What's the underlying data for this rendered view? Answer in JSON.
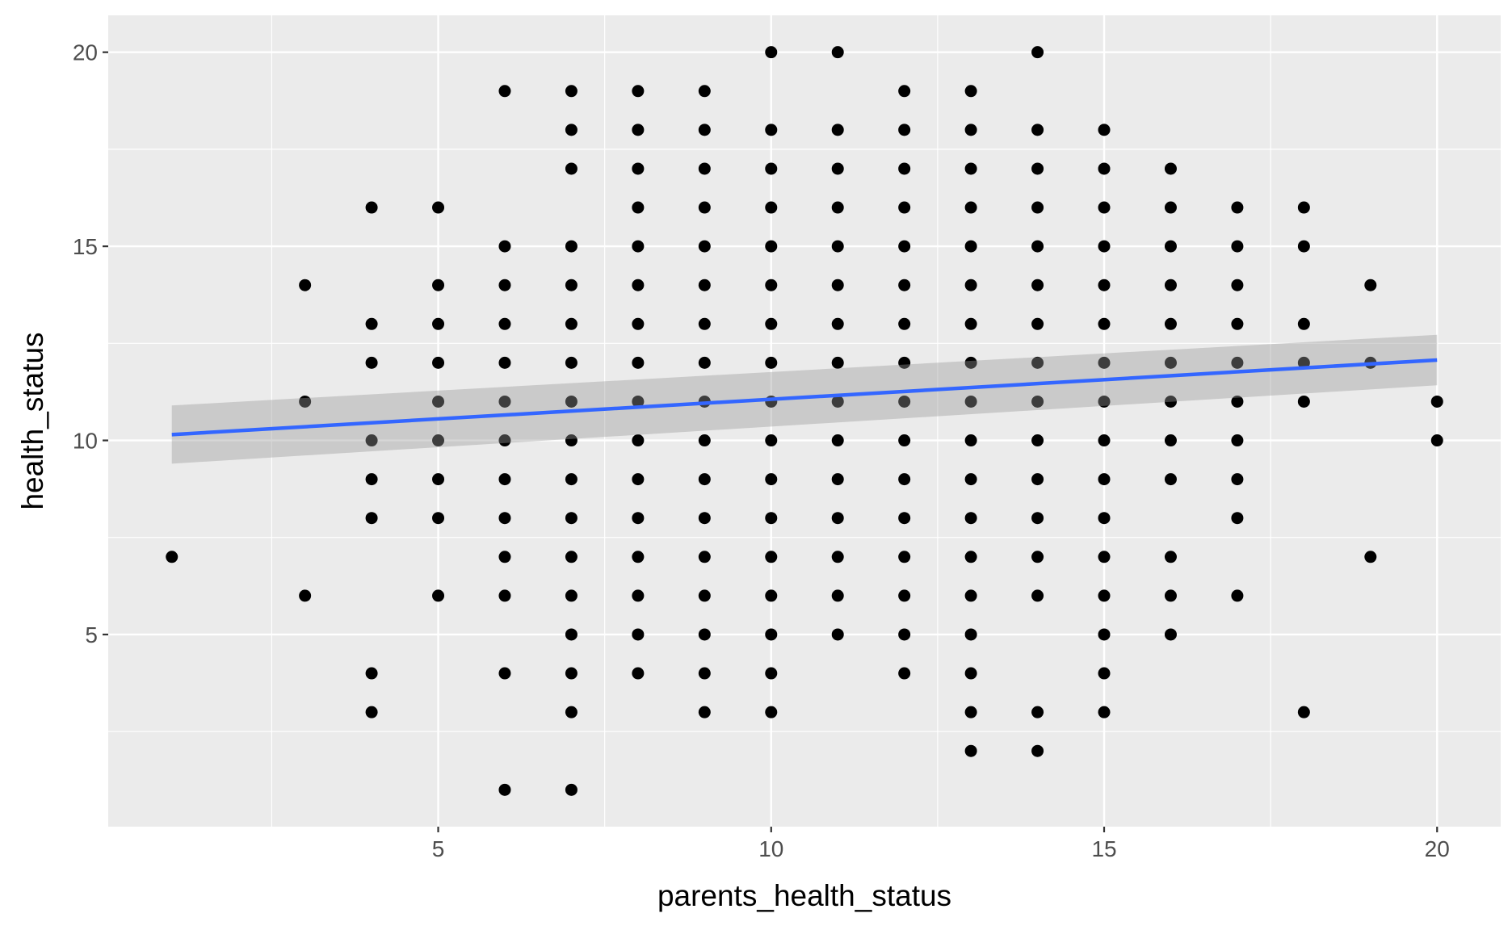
{
  "chart_data": {
    "type": "scatter",
    "title": "",
    "xlabel": "parents_health_status",
    "ylabel": "health_status",
    "xlim": [
      0.045,
      20.955
    ],
    "ylim": [
      0.05,
      20.95
    ],
    "x_ticks": [
      5,
      10,
      15,
      20
    ],
    "x_tick_labels": [
      "5",
      "10",
      "15",
      "20"
    ],
    "y_ticks": [
      5,
      10,
      15,
      20
    ],
    "y_tick_labels": [
      "5",
      "10",
      "15",
      "20"
    ],
    "grid": true,
    "legend": "none",
    "colors": {
      "panel_background": "#ebebeb",
      "grid": "#ffffff",
      "points": "#000000",
      "trend_line": "#3366ff",
      "confidence_band": "#999999"
    },
    "points": [
      [
        1,
        7
      ],
      [
        3,
        14
      ],
      [
        3,
        11
      ],
      [
        3,
        6
      ],
      [
        4,
        16
      ],
      [
        4,
        13
      ],
      [
        4,
        12
      ],
      [
        4,
        10
      ],
      [
        4,
        9
      ],
      [
        4,
        8
      ],
      [
        4,
        4
      ],
      [
        4,
        3
      ],
      [
        5,
        16
      ],
      [
        5,
        14
      ],
      [
        5,
        13
      ],
      [
        5,
        12
      ],
      [
        5,
        11
      ],
      [
        5,
        10
      ],
      [
        5,
        9
      ],
      [
        5,
        8
      ],
      [
        5,
        6
      ],
      [
        6,
        19
      ],
      [
        6,
        15
      ],
      [
        6,
        14
      ],
      [
        6,
        13
      ],
      [
        6,
        12
      ],
      [
        6,
        11
      ],
      [
        6,
        10
      ],
      [
        6,
        9
      ],
      [
        6,
        8
      ],
      [
        6,
        7
      ],
      [
        6,
        6
      ],
      [
        6,
        4
      ],
      [
        6,
        1
      ],
      [
        7,
        19
      ],
      [
        7,
        18
      ],
      [
        7,
        17
      ],
      [
        7,
        15
      ],
      [
        7,
        14
      ],
      [
        7,
        13
      ],
      [
        7,
        12
      ],
      [
        7,
        11
      ],
      [
        7,
        10
      ],
      [
        7,
        9
      ],
      [
        7,
        8
      ],
      [
        7,
        7
      ],
      [
        7,
        6
      ],
      [
        7,
        5
      ],
      [
        7,
        4
      ],
      [
        7,
        3
      ],
      [
        7,
        1
      ],
      [
        8,
        19
      ],
      [
        8,
        18
      ],
      [
        8,
        17
      ],
      [
        8,
        16
      ],
      [
        8,
        15
      ],
      [
        8,
        14
      ],
      [
        8,
        13
      ],
      [
        8,
        12
      ],
      [
        8,
        11
      ],
      [
        8,
        10
      ],
      [
        8,
        9
      ],
      [
        8,
        8
      ],
      [
        8,
        7
      ],
      [
        8,
        6
      ],
      [
        8,
        5
      ],
      [
        8,
        4
      ],
      [
        9,
        19
      ],
      [
        9,
        18
      ],
      [
        9,
        17
      ],
      [
        9,
        16
      ],
      [
        9,
        15
      ],
      [
        9,
        14
      ],
      [
        9,
        13
      ],
      [
        9,
        12
      ],
      [
        9,
        11
      ],
      [
        9,
        10
      ],
      [
        9,
        9
      ],
      [
        9,
        8
      ],
      [
        9,
        7
      ],
      [
        9,
        6
      ],
      [
        9,
        5
      ],
      [
        9,
        4
      ],
      [
        9,
        3
      ],
      [
        10,
        20
      ],
      [
        10,
        18
      ],
      [
        10,
        17
      ],
      [
        10,
        16
      ],
      [
        10,
        15
      ],
      [
        10,
        14
      ],
      [
        10,
        13
      ],
      [
        10,
        12
      ],
      [
        10,
        11
      ],
      [
        10,
        10
      ],
      [
        10,
        9
      ],
      [
        10,
        8
      ],
      [
        10,
        7
      ],
      [
        10,
        6
      ],
      [
        10,
        5
      ],
      [
        10,
        4
      ],
      [
        10,
        3
      ],
      [
        11,
        20
      ],
      [
        11,
        18
      ],
      [
        11,
        17
      ],
      [
        11,
        16
      ],
      [
        11,
        15
      ],
      [
        11,
        14
      ],
      [
        11,
        13
      ],
      [
        11,
        12
      ],
      [
        11,
        11
      ],
      [
        11,
        10
      ],
      [
        11,
        9
      ],
      [
        11,
        8
      ],
      [
        11,
        7
      ],
      [
        11,
        6
      ],
      [
        11,
        5
      ],
      [
        12,
        19
      ],
      [
        12,
        18
      ],
      [
        12,
        17
      ],
      [
        12,
        16
      ],
      [
        12,
        15
      ],
      [
        12,
        14
      ],
      [
        12,
        13
      ],
      [
        12,
        12
      ],
      [
        12,
        11
      ],
      [
        12,
        10
      ],
      [
        12,
        9
      ],
      [
        12,
        8
      ],
      [
        12,
        7
      ],
      [
        12,
        6
      ],
      [
        12,
        5
      ],
      [
        12,
        4
      ],
      [
        13,
        19
      ],
      [
        13,
        18
      ],
      [
        13,
        17
      ],
      [
        13,
        16
      ],
      [
        13,
        15
      ],
      [
        13,
        14
      ],
      [
        13,
        13
      ],
      [
        13,
        12
      ],
      [
        13,
        11
      ],
      [
        13,
        10
      ],
      [
        13,
        9
      ],
      [
        13,
        8
      ],
      [
        13,
        7
      ],
      [
        13,
        6
      ],
      [
        13,
        5
      ],
      [
        13,
        4
      ],
      [
        13,
        3
      ],
      [
        13,
        2
      ],
      [
        14,
        20
      ],
      [
        14,
        18
      ],
      [
        14,
        17
      ],
      [
        14,
        16
      ],
      [
        14,
        15
      ],
      [
        14,
        14
      ],
      [
        14,
        13
      ],
      [
        14,
        12
      ],
      [
        14,
        11
      ],
      [
        14,
        10
      ],
      [
        14,
        9
      ],
      [
        14,
        8
      ],
      [
        14,
        7
      ],
      [
        14,
        6
      ],
      [
        14,
        3
      ],
      [
        14,
        2
      ],
      [
        15,
        18
      ],
      [
        15,
        17
      ],
      [
        15,
        16
      ],
      [
        15,
        15
      ],
      [
        15,
        14
      ],
      [
        15,
        13
      ],
      [
        15,
        12
      ],
      [
        15,
        11
      ],
      [
        15,
        10
      ],
      [
        15,
        9
      ],
      [
        15,
        8
      ],
      [
        15,
        7
      ],
      [
        15,
        6
      ],
      [
        15,
        5
      ],
      [
        15,
        4
      ],
      [
        15,
        3
      ],
      [
        16,
        17
      ],
      [
        16,
        16
      ],
      [
        16,
        15
      ],
      [
        16,
        14
      ],
      [
        16,
        13
      ],
      [
        16,
        12
      ],
      [
        16,
        11
      ],
      [
        16,
        10
      ],
      [
        16,
        9
      ],
      [
        16,
        7
      ],
      [
        16,
        6
      ],
      [
        16,
        5
      ],
      [
        17,
        16
      ],
      [
        17,
        15
      ],
      [
        17,
        14
      ],
      [
        17,
        13
      ],
      [
        17,
        12
      ],
      [
        17,
        11
      ],
      [
        17,
        10
      ],
      [
        17,
        9
      ],
      [
        17,
        8
      ],
      [
        17,
        6
      ],
      [
        18,
        16
      ],
      [
        18,
        15
      ],
      [
        18,
        13
      ],
      [
        18,
        12
      ],
      [
        18,
        11
      ],
      [
        18,
        3
      ],
      [
        19,
        14
      ],
      [
        19,
        12
      ],
      [
        19,
        7
      ],
      [
        20,
        11
      ],
      [
        20,
        10
      ]
    ],
    "trend_line": {
      "method": "linear",
      "x": [
        1,
        20
      ],
      "y": [
        10.15,
        12.07
      ],
      "band_lower": [
        9.4,
        11.42
      ],
      "band_upper": [
        10.9,
        12.72
      ]
    }
  }
}
